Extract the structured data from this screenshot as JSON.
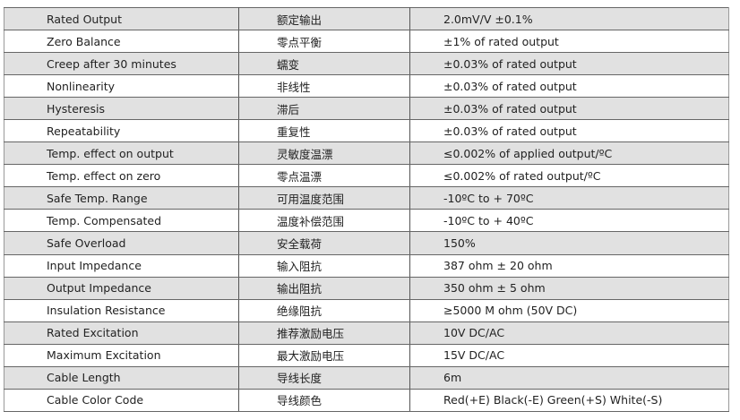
{
  "rows": [
    [
      "Rated Output",
      "额定输出",
      "2.0mV/V ±0.1%"
    ],
    [
      "Zero Balance",
      "零点平衡",
      "±1% of rated output"
    ],
    [
      "Creep after 30 minutes",
      "蠕变",
      "±0.03% of rated output"
    ],
    [
      "Nonlinearity",
      "非线性",
      "±0.03% of rated output"
    ],
    [
      "Hysteresis",
      "滞后",
      "±0.03% of rated output"
    ],
    [
      "Repeatability",
      "重复性",
      "±0.03% of rated output"
    ],
    [
      "Temp. effect on output",
      "灵敏度温漂",
      "≤0.002% of applied output/ºC"
    ],
    [
      "Temp. effect on zero",
      "零点温漂",
      "≤0.002% of rated output/ºC"
    ],
    [
      "Safe Temp. Range",
      "可用温度范围",
      "-10ºC to + 70ºC"
    ],
    [
      "Temp. Compensated",
      "温度补偿范围",
      "-10ºC to + 40ºC"
    ],
    [
      "Safe Overload",
      "安全载荷",
      "150%"
    ],
    [
      "Input Impedance",
      "输入阻抗",
      "387 ohm ± 20 ohm"
    ],
    [
      "Output Impedance",
      "输出阻抗",
      "350 ohm ± 5 ohm"
    ],
    [
      "Insulation Resistance",
      "绝缘阻抗",
      "≥5000 M ohm (50V DC)"
    ],
    [
      "Rated Excitation",
      "推荐激励电压",
      "10V DC/AC"
    ],
    [
      "Maximum Excitation",
      "最大激励电压",
      "15V DC/AC"
    ],
    [
      "Cable Length",
      "导线长度",
      "6m"
    ],
    [
      "Cable Color Code",
      "导线颜色",
      "Red(+E) Black(-E) Green(+S) White(-S)"
    ]
  ],
  "colors": {
    "stripe": "#e1e1e1",
    "border": "#666666"
  }
}
